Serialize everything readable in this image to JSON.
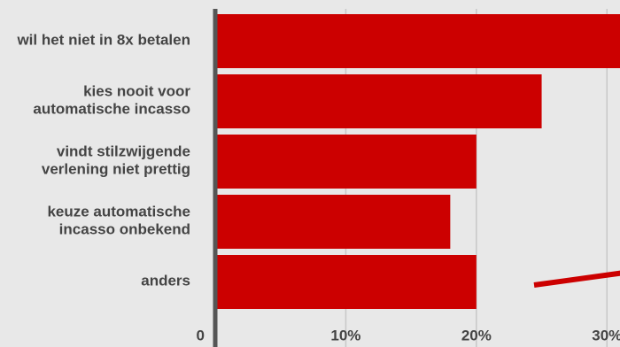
{
  "chart_data": {
    "type": "barh",
    "categories": [
      [
        "wil het niet in 8x betalen"
      ],
      [
        "kies nooit voor",
        "automatische incasso"
      ],
      [
        "vindt stilzwijgende",
        "verlening niet prettig"
      ],
      [
        "keuze automatische",
        "incasso onbekend"
      ],
      [
        "anders"
      ]
    ],
    "values": [
      32,
      25,
      20,
      18,
      20
    ],
    "color": "#cc0000",
    "xlim": [
      0,
      31
    ],
    "xticks": [
      0,
      {
        "value": 10,
        "label": "10%"
      },
      {
        "value": 20,
        "label": "20%"
      },
      {
        "value": 30,
        "label": "30%"
      }
    ],
    "grid": true
  }
}
